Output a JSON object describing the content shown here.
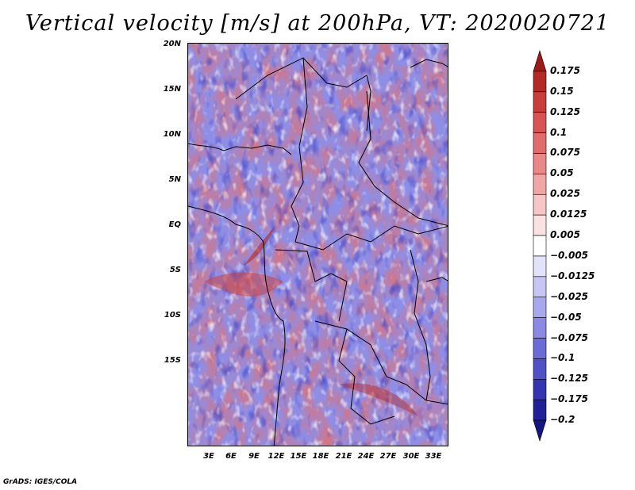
{
  "title": "Vertical velocity [m/s] at 200hPa, VT: 2020020721",
  "footer": "GrADS: IGES/COLA",
  "map": {
    "lat_labels": [
      "20N",
      "15N",
      "10N",
      "5N",
      "EQ",
      "5S",
      "10S",
      "15S"
    ],
    "lon_labels": [
      "3E",
      "6E",
      "9E",
      "12E",
      "15E",
      "18E",
      "21E",
      "24E",
      "27E",
      "30E",
      "33E"
    ],
    "field": "vertical velocity"
  },
  "colorbar": {
    "labels": [
      "0.175",
      "0.15",
      "0.125",
      "0.1",
      "0.075",
      "0.05",
      "0.025",
      "0.0125",
      "0.005",
      "−0.005",
      "−0.0125",
      "−0.025",
      "−0.05",
      "−0.075",
      "−0.1",
      "−0.125",
      "−0.175",
      "−0.2"
    ],
    "colors": [
      "#9b1b1b",
      "#b42828",
      "#c83c3c",
      "#d85454",
      "#e26c6c",
      "#ea8888",
      "#f1a6a6",
      "#f6c6c6",
      "#fae2e2",
      "#ffffff",
      "#e2e2fa",
      "#c6c6f4",
      "#a8a8ee",
      "#8a8ae4",
      "#6c6cd8",
      "#5050c8",
      "#3434b2",
      "#20209a",
      "#161680"
    ]
  }
}
